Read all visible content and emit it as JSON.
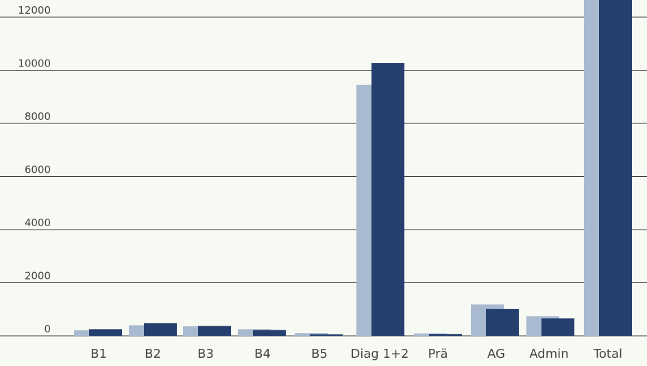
{
  "chart_data": {
    "type": "bar",
    "title": "",
    "xlabel": "",
    "ylabel": "",
    "categories": [
      "B1",
      "B2",
      "B3",
      "B4",
      "B5",
      "Diag 1+2",
      "Prä",
      "AG",
      "Admin",
      "Total"
    ],
    "series": [
      {
        "values": [
          210,
          400,
          360,
          250,
          100,
          9450,
          90,
          1180,
          740,
          13500
        ]
      },
      {
        "values": [
          250,
          480,
          370,
          220,
          60,
          10270,
          70,
          1010,
          660,
          13500
        ]
      }
    ],
    "ylim": [
      0,
      12700
    ],
    "yticks": [
      0,
      2000,
      4000,
      6000,
      8000,
      10000,
      12000
    ],
    "ytick_labels": [
      "0",
      "2000",
      "4000",
      "6000",
      "8000",
      "10000",
      "12000"
    ],
    "grid": true,
    "legend": "none"
  },
  "colors": {
    "background": "#f7f9f3",
    "series": [
      "#a9bad0",
      "#253f6f"
    ],
    "gridline": "#3a3a3a",
    "text": "#444444"
  }
}
